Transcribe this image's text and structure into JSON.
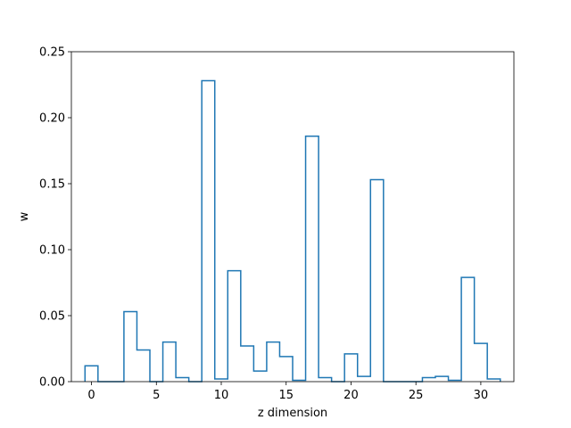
{
  "chart_data": {
    "type": "bar",
    "style": "step-histogram",
    "xlabel": "z dimension",
    "ylabel": "w",
    "xlim": [
      -1.55,
      32.55
    ],
    "ylim": [
      0,
      0.25
    ],
    "xticks": [
      0,
      5,
      10,
      15,
      20,
      25,
      30
    ],
    "yticks": [
      0.0,
      0.05,
      0.1,
      0.15,
      0.2,
      0.25
    ],
    "xtick_labels": [
      "0",
      "5",
      "10",
      "15",
      "20",
      "25",
      "30"
    ],
    "ytick_labels": [
      "0.00",
      "0.05",
      "0.10",
      "0.15",
      "0.20",
      "0.25"
    ],
    "grid": false,
    "x": [
      0,
      1,
      2,
      3,
      4,
      5,
      6,
      7,
      8,
      9,
      10,
      11,
      12,
      13,
      14,
      15,
      16,
      17,
      18,
      19,
      20,
      21,
      22,
      23,
      24,
      25,
      26,
      27,
      28,
      29,
      30,
      31
    ],
    "values": [
      0.012,
      0.0,
      0.0,
      0.053,
      0.024,
      0.0,
      0.03,
      0.003,
      0.0,
      0.228,
      0.002,
      0.084,
      0.027,
      0.008,
      0.03,
      0.019,
      0.001,
      0.186,
      0.003,
      0.0,
      0.021,
      0.004,
      0.153,
      0.0,
      0.0,
      0.0,
      0.003,
      0.004,
      0.001,
      0.079,
      0.029,
      0.002
    ],
    "line_color": "#1f77b4"
  }
}
